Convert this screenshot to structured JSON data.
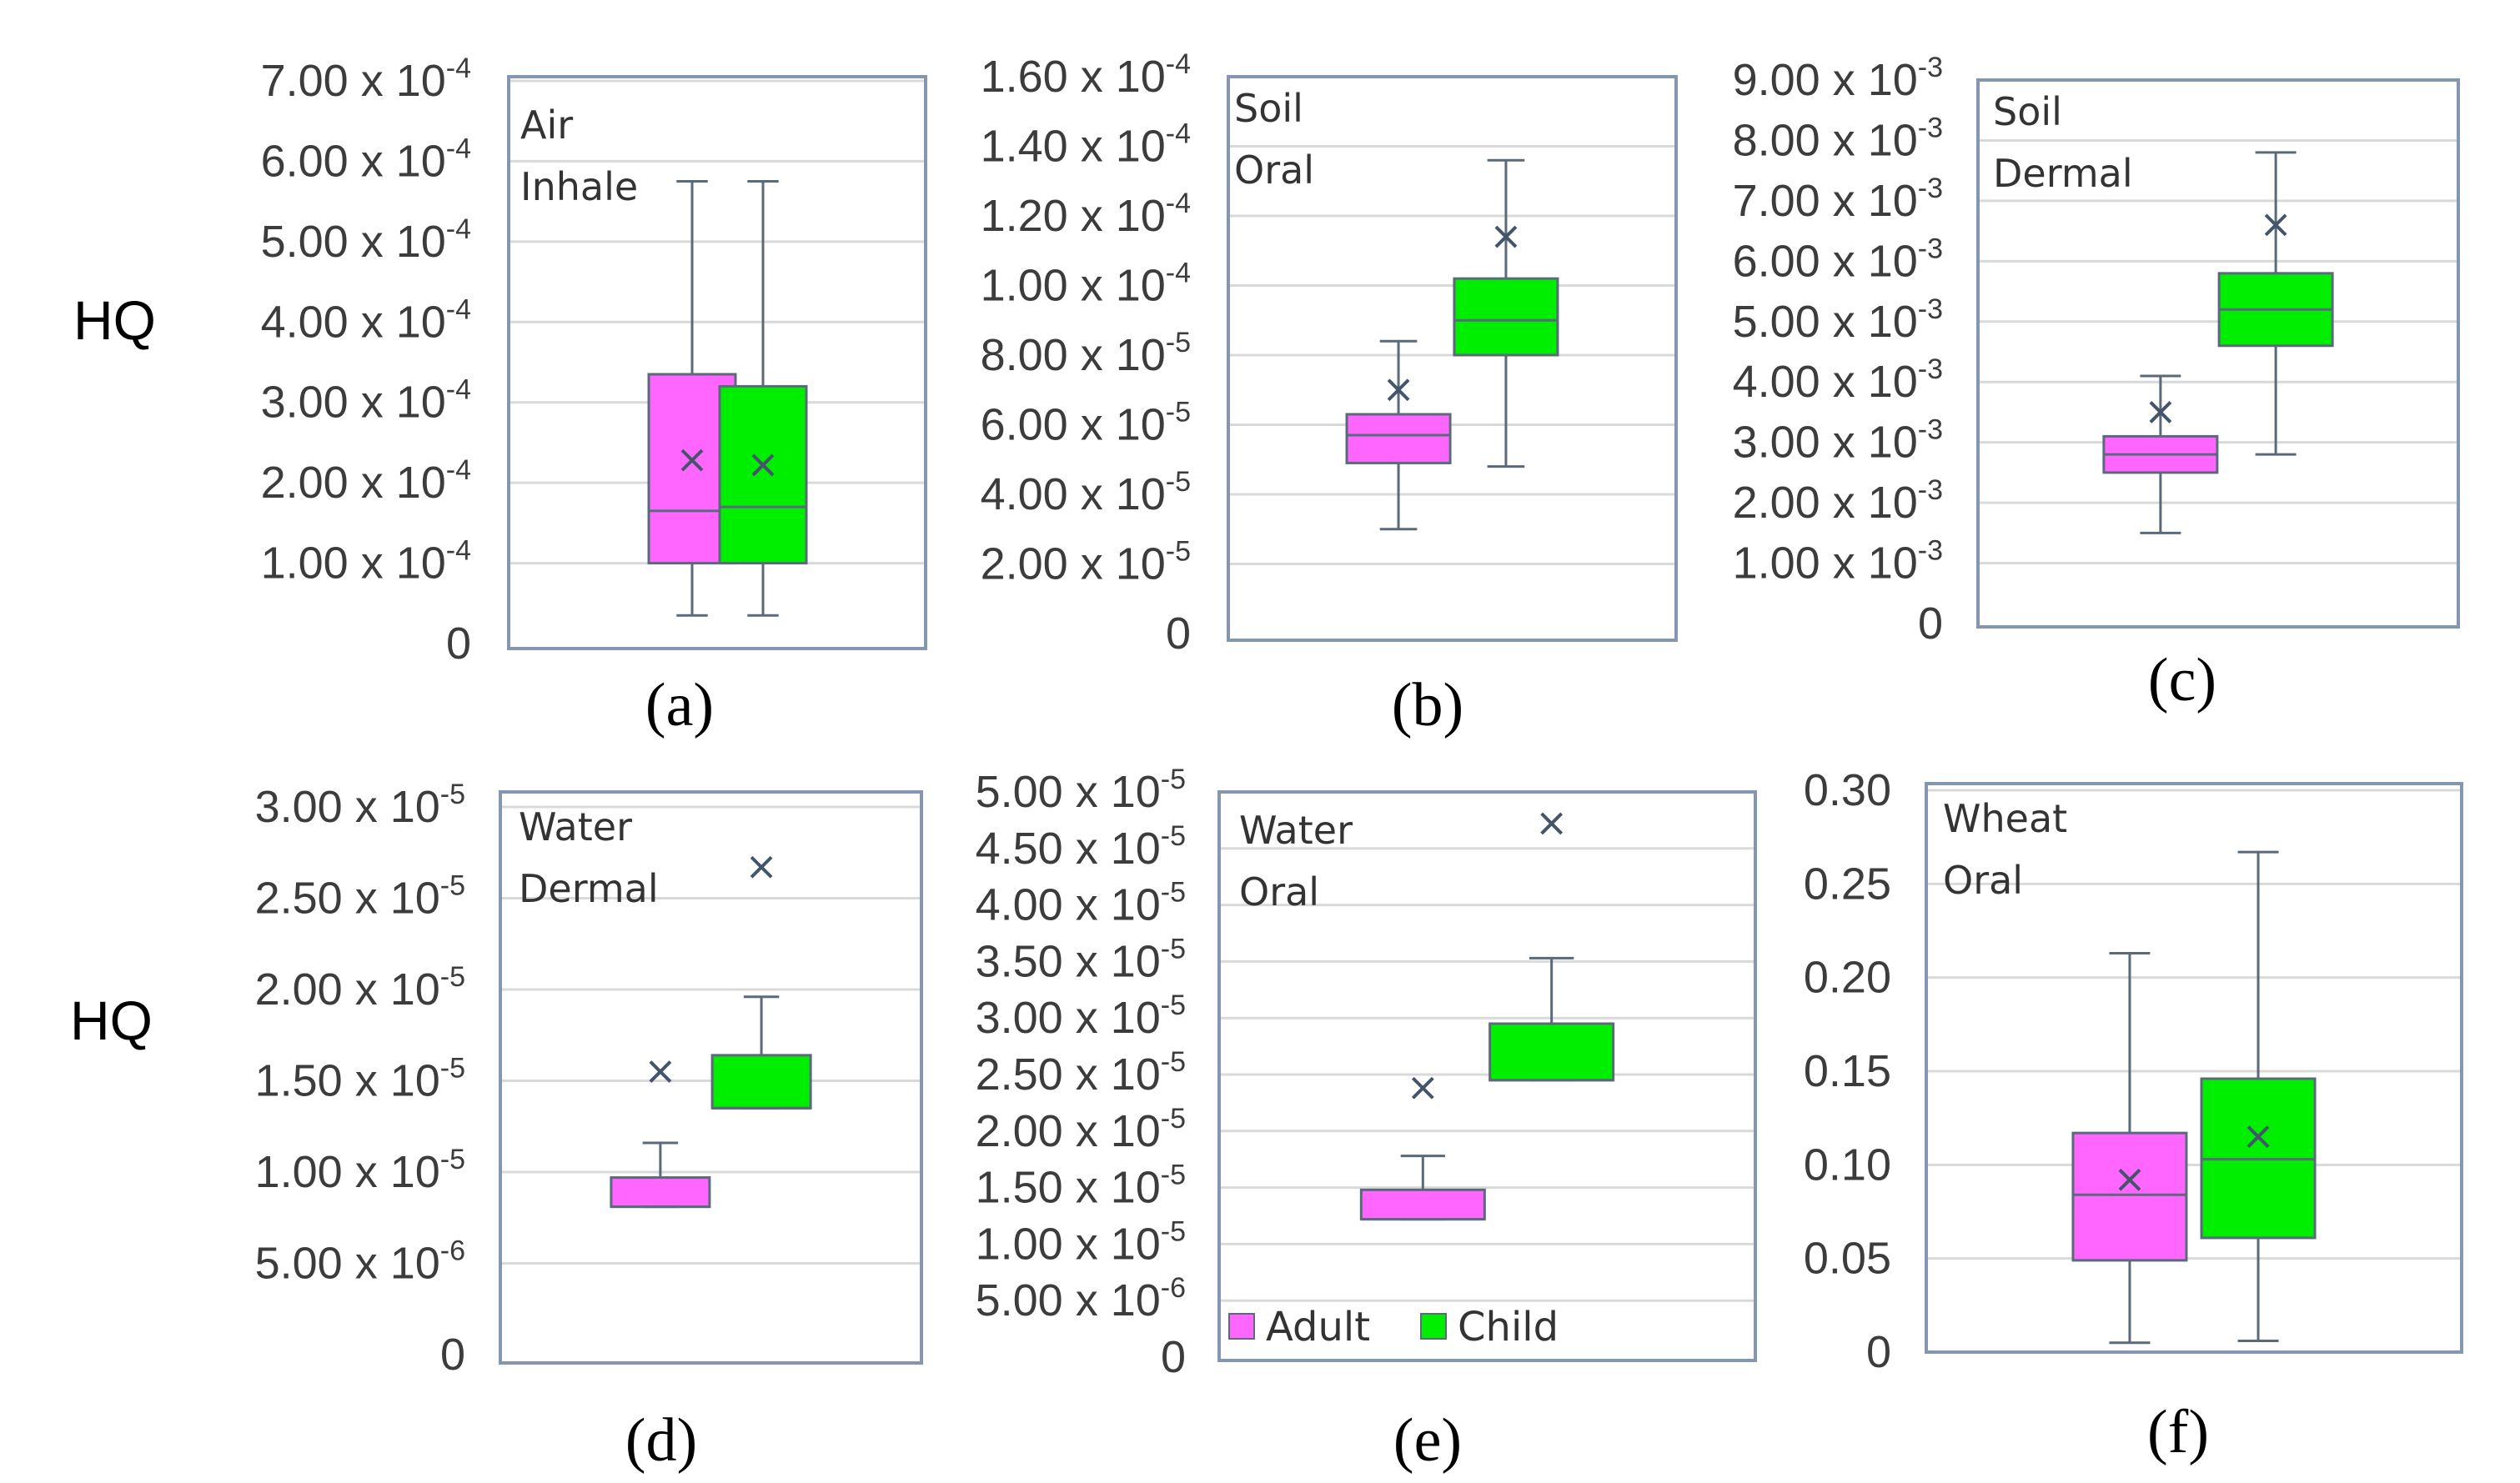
{
  "figure": {
    "y_axis_label": "HQ",
    "legend": [
      {
        "label": "Adult",
        "color": "#ff66ff"
      },
      {
        "label": "Child",
        "color": "#00ee00"
      }
    ],
    "colors": {
      "frame": "#8496b0",
      "grid": "#d9d9d9",
      "whisker": "#5a6a7a",
      "mean_marker": "#44546a"
    }
  },
  "chart_data": [
    {
      "type": "box",
      "caption": "(a)",
      "panel_label": [
        "Air",
        "Inhale"
      ],
      "ylim": [
        0,
        0.0007
      ],
      "yticks": [
        {
          "value": 0,
          "label": "0"
        },
        {
          "value": 0.0001,
          "label": "1.00 x 10",
          "exp": "-4"
        },
        {
          "value": 0.0002,
          "label": "2.00 x 10",
          "exp": "-4"
        },
        {
          "value": 0.0003,
          "label": "3.00 x 10",
          "exp": "-4"
        },
        {
          "value": 0.0004,
          "label": "4.00 x 10",
          "exp": "-4"
        },
        {
          "value": 0.0005,
          "label": "5.00 x 10",
          "exp": "-4"
        },
        {
          "value": 0.0006,
          "label": "6.00 x 10",
          "exp": "-4"
        },
        {
          "value": 0.0007,
          "label": "7.00 x 10",
          "exp": "-4"
        }
      ],
      "series": [
        {
          "name": "Adult",
          "min": 3.5e-05,
          "q1": 0.0001,
          "median": 0.000165,
          "q3": 0.000335,
          "max": 0.000575,
          "mean": 0.000228
        },
        {
          "name": "Child",
          "min": 3.5e-05,
          "q1": 0.0001,
          "median": 0.00017,
          "q3": 0.00032,
          "max": 0.000575,
          "mean": 0.000222
        }
      ]
    },
    {
      "type": "box",
      "caption": "(b)",
      "panel_label": [
        "Soil",
        "Oral"
      ],
      "ylim": [
        0,
        0.00016
      ],
      "yticks": [
        {
          "value": 0,
          "label": "0"
        },
        {
          "value": 2e-05,
          "label": "2.00 x 10",
          "exp": "-5"
        },
        {
          "value": 4e-05,
          "label": "4.00 x 10",
          "exp": "-5"
        },
        {
          "value": 6e-05,
          "label": "6.00 x 10",
          "exp": "-5"
        },
        {
          "value": 8e-05,
          "label": "8.00 x 10",
          "exp": "-5"
        },
        {
          "value": 0.0001,
          "label": "1.00 x 10",
          "exp": "-4"
        },
        {
          "value": 0.00012,
          "label": "1.20 x 10",
          "exp": "-4"
        },
        {
          "value": 0.00014,
          "label": "1.40 x 10",
          "exp": "-4"
        },
        {
          "value": 0.00016,
          "label": "1.60 x 10",
          "exp": "-4"
        }
      ],
      "series": [
        {
          "name": "Adult",
          "min": 3e-05,
          "q1": 4.9e-05,
          "median": 5.7e-05,
          "q3": 6.3e-05,
          "max": 8.4e-05,
          "mean": 7e-05
        },
        {
          "name": "Child",
          "min": 4.8e-05,
          "q1": 8e-05,
          "median": 9e-05,
          "q3": 0.000102,
          "max": 0.000136,
          "mean": 0.000114
        }
      ]
    },
    {
      "type": "box",
      "caption": "(c)",
      "panel_label": [
        "Soil",
        "Dermal"
      ],
      "ylim": [
        0,
        0.009
      ],
      "yticks": [
        {
          "value": 0,
          "label": "0"
        },
        {
          "value": 0.001,
          "label": "1.00 x 10",
          "exp": "-3"
        },
        {
          "value": 0.002,
          "label": "2.00 x 10",
          "exp": "-3"
        },
        {
          "value": 0.003,
          "label": "3.00 x 10",
          "exp": "-3"
        },
        {
          "value": 0.004,
          "label": "4.00 x 10",
          "exp": "-3"
        },
        {
          "value": 0.005,
          "label": "5.00 x 10",
          "exp": "-3"
        },
        {
          "value": 0.006,
          "label": "6.00 x 10",
          "exp": "-3"
        },
        {
          "value": 0.007,
          "label": "7.00 x 10",
          "exp": "-3"
        },
        {
          "value": 0.008,
          "label": "8.00 x 10",
          "exp": "-3"
        },
        {
          "value": 0.009,
          "label": "9.00 x 10",
          "exp": "-3"
        }
      ],
      "series": [
        {
          "name": "Adult",
          "min": 0.0015,
          "q1": 0.0025,
          "median": 0.0028,
          "q3": 0.0031,
          "max": 0.0041,
          "mean": 0.0035
        },
        {
          "name": "Child",
          "min": 0.0028,
          "q1": 0.0046,
          "median": 0.0052,
          "q3": 0.0058,
          "max": 0.0078,
          "mean": 0.0066
        }
      ]
    },
    {
      "type": "box",
      "caption": "(d)",
      "panel_label": [
        "Water",
        "Dermal"
      ],
      "ylim": [
        0,
        3e-05
      ],
      "yticks": [
        {
          "value": 0,
          "label": "0"
        },
        {
          "value": 5e-06,
          "label": "5.00 x 10",
          "exp": "-6"
        },
        {
          "value": 1e-05,
          "label": "1.00 x 10",
          "exp": "-5"
        },
        {
          "value": 1.5e-05,
          "label": "1.50 x 10",
          "exp": "-5"
        },
        {
          "value": 2e-05,
          "label": "2.00 x 10",
          "exp": "-5"
        },
        {
          "value": 2.5e-05,
          "label": "2.50 x 10",
          "exp": "-5"
        },
        {
          "value": 3e-05,
          "label": "3.00 x 10",
          "exp": "-5"
        }
      ],
      "series": [
        {
          "name": "Adult",
          "min": 8.1e-06,
          "q1": 8.1e-06,
          "median": 8.1e-06,
          "q3": 9.7e-06,
          "max": 1.16e-05,
          "mean": 1.55e-05
        },
        {
          "name": "Child",
          "min": 1.35e-05,
          "q1": 1.35e-05,
          "median": 1.35e-05,
          "q3": 1.64e-05,
          "max": 1.96e-05,
          "mean": 2.67e-05
        }
      ]
    },
    {
      "type": "box",
      "caption": "(e)",
      "panel_label": [
        "Water",
        "Oral"
      ],
      "show_legend": true,
      "ylim": [
        0,
        5e-05
      ],
      "yticks": [
        {
          "value": 0,
          "label": "0"
        },
        {
          "value": 5e-06,
          "label": "5.00 x 10",
          "exp": "-6"
        },
        {
          "value": 1e-05,
          "label": "1.00 x 10",
          "exp": "-5"
        },
        {
          "value": 1.5e-05,
          "label": "1.50 x 10",
          "exp": "-5"
        },
        {
          "value": 2e-05,
          "label": "2.00 x 10",
          "exp": "-5"
        },
        {
          "value": 2.5e-05,
          "label": "2.50 x 10",
          "exp": "-5"
        },
        {
          "value": 3e-05,
          "label": "3.00 x 10",
          "exp": "-5"
        },
        {
          "value": 3.5e-05,
          "label": "3.50 x 10",
          "exp": "-5"
        },
        {
          "value": 4e-05,
          "label": "4.00 x 10",
          "exp": "-5"
        },
        {
          "value": 4.5e-05,
          "label": "4.50 x 10",
          "exp": "-5"
        },
        {
          "value": 5e-05,
          "label": "5.00 x 10",
          "exp": "-5"
        }
      ],
      "series": [
        {
          "name": "Adult",
          "min": 1.22e-05,
          "q1": 1.22e-05,
          "median": 1.22e-05,
          "q3": 1.48e-05,
          "max": 1.78e-05,
          "mean": 2.38e-05
        },
        {
          "name": "Child",
          "min": 2.45e-05,
          "q1": 2.45e-05,
          "median": 2.45e-05,
          "q3": 2.95e-05,
          "max": 3.53e-05,
          "mean": 4.72e-05
        }
      ]
    },
    {
      "type": "box",
      "caption": "(f)",
      "panel_label": [
        "Wheat",
        "Oral"
      ],
      "ylim": [
        0,
        0.3
      ],
      "yticks": [
        {
          "value": 0,
          "label": "0"
        },
        {
          "value": 0.05,
          "label": "0.05"
        },
        {
          "value": 0.1,
          "label": "0.10"
        },
        {
          "value": 0.15,
          "label": "0.15"
        },
        {
          "value": 0.2,
          "label": "0.20"
        },
        {
          "value": 0.25,
          "label": "0.25"
        },
        {
          "value": 0.3,
          "label": "0.30"
        }
      ],
      "series": [
        {
          "name": "Adult",
          "min": 0.005,
          "q1": 0.049,
          "median": 0.084,
          "q3": 0.117,
          "max": 0.213,
          "mean": 0.092
        },
        {
          "name": "Child",
          "min": 0.006,
          "q1": 0.061,
          "median": 0.103,
          "q3": 0.146,
          "max": 0.267,
          "mean": 0.115
        }
      ]
    }
  ]
}
